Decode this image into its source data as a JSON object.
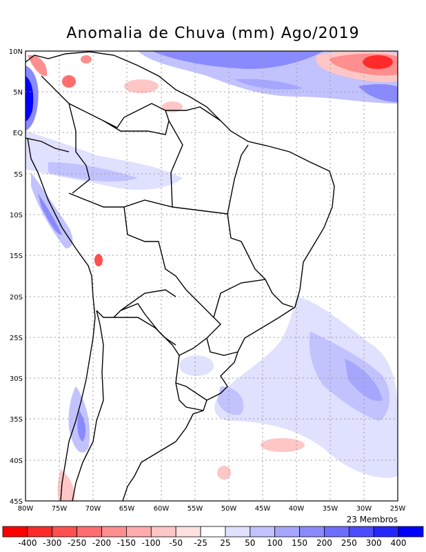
{
  "title": "Anomalia de Chuva (mm) Ago/2019",
  "members_label": "23 Membros",
  "map": {
    "lon_range": [
      -80,
      -25
    ],
    "lat_range": [
      -45,
      10
    ],
    "lon_ticks": [
      "80W",
      "75W",
      "70W",
      "65W",
      "60W",
      "55W",
      "50W",
      "45W",
      "40W",
      "35W",
      "30W",
      "25W"
    ],
    "lat_ticks": [
      "10N",
      "5N",
      "EQ",
      "5S",
      "10S",
      "15S",
      "20S",
      "25S",
      "30S",
      "35S",
      "40S",
      "45S"
    ],
    "grid": true
  },
  "colorbar": {
    "labels": [
      "-400",
      "-300",
      "-250",
      "-200",
      "-150",
      "-100",
      "-50",
      "-25",
      "25",
      "50",
      "100",
      "150",
      "200",
      "250",
      "300",
      "400"
    ],
    "colors": [
      "#ff0000",
      "#ff2a2a",
      "#ff4f4f",
      "#ff6e6e",
      "#ff8e8e",
      "#ffabab",
      "#ffc6c6",
      "#ffe0e0",
      "#ffffff",
      "#e0e0ff",
      "#c2c2ff",
      "#a6a6ff",
      "#8a8aff",
      "#6d6dff",
      "#4c4cff",
      "#2626ff",
      "#0000ff"
    ]
  }
}
